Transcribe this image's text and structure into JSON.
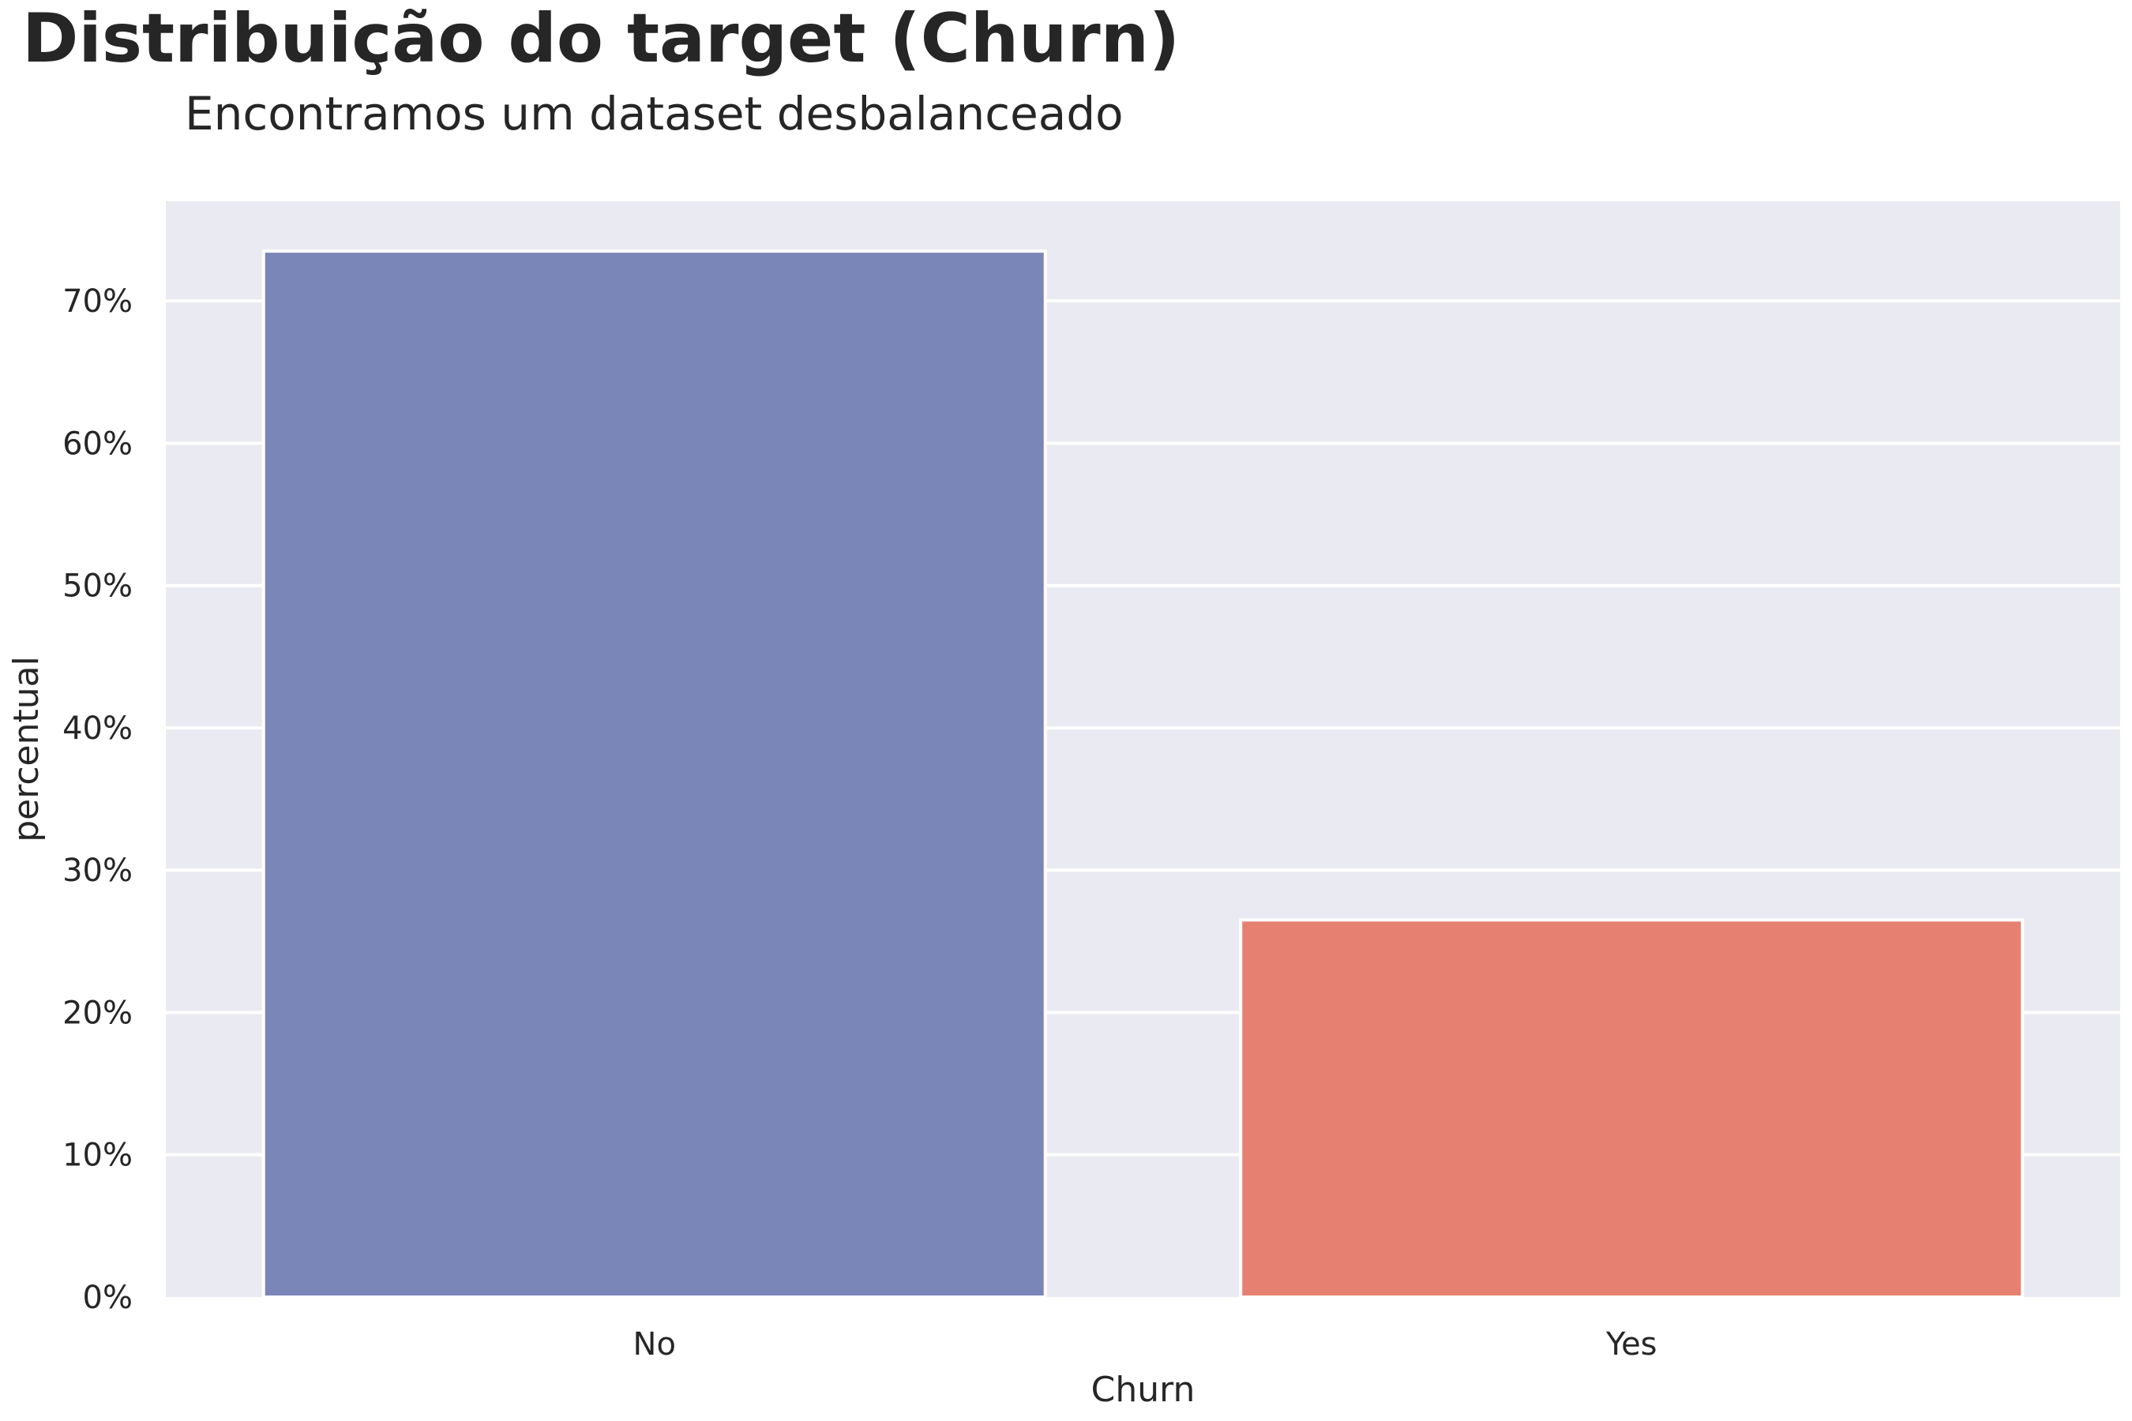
{
  "chart_data": {
    "type": "bar",
    "title": "Distribuição do target (Churn)",
    "subtitle": "Encontramos um dataset desbalanceado",
    "xlabel": "Churn",
    "ylabel": "percentual",
    "categories": [
      "No",
      "Yes"
    ],
    "values": [
      73.5,
      26.5
    ],
    "colors": [
      "#7a86b8",
      "#e68172"
    ],
    "ylim": [
      0,
      77
    ],
    "yticks": [
      0,
      10,
      20,
      30,
      40,
      50,
      60,
      70
    ],
    "ytick_labels": [
      "0%",
      "10%",
      "20%",
      "30%",
      "40%",
      "50%",
      "60%",
      "70%"
    ],
    "background": "#eaeaf2",
    "grid": true
  }
}
